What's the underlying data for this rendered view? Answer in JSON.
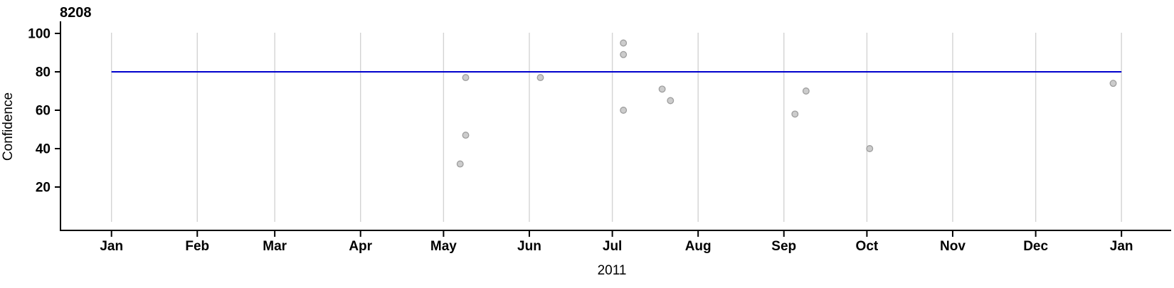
{
  "title": "8208",
  "chart_data": {
    "type": "scatter",
    "title": "8208",
    "xlabel": "2011",
    "ylabel": "Confidence",
    "legend": "none",
    "grid": "vertical-monthly-gridlines",
    "x_axis": {
      "kind": "date",
      "start": "2011-01-01",
      "end": "2012-01-01",
      "ticks": [
        {
          "date": "2011-01-01",
          "label": "Jan"
        },
        {
          "date": "2011-02-01",
          "label": "Feb"
        },
        {
          "date": "2011-03-01",
          "label": "Mar"
        },
        {
          "date": "2011-04-01",
          "label": "Apr"
        },
        {
          "date": "2011-05-01",
          "label": "May"
        },
        {
          "date": "2011-06-01",
          "label": "Jun"
        },
        {
          "date": "2011-07-01",
          "label": "Jul"
        },
        {
          "date": "2011-08-01",
          "label": "Aug"
        },
        {
          "date": "2011-09-01",
          "label": "Sep"
        },
        {
          "date": "2011-10-01",
          "label": "Oct"
        },
        {
          "date": "2011-11-01",
          "label": "Nov"
        },
        {
          "date": "2011-12-01",
          "label": "Dec"
        },
        {
          "date": "2012-01-01",
          "label": "Jan"
        }
      ]
    },
    "y_axis": {
      "ticks": [
        20,
        40,
        60,
        80,
        100
      ],
      "ylim": [
        0,
        105
      ]
    },
    "reference_line": {
      "value": 80
    },
    "points": [
      {
        "date": "2011-05-07",
        "confidence": 32
      },
      {
        "date": "2011-05-09",
        "confidence": 77
      },
      {
        "date": "2011-05-09",
        "confidence": 47
      },
      {
        "date": "2011-06-05",
        "confidence": 77
      },
      {
        "date": "2011-07-05",
        "confidence": 95
      },
      {
        "date": "2011-07-05",
        "confidence": 89
      },
      {
        "date": "2011-07-05",
        "confidence": 60
      },
      {
        "date": "2011-07-19",
        "confidence": 71
      },
      {
        "date": "2011-07-22",
        "confidence": 65
      },
      {
        "date": "2011-09-05",
        "confidence": 58
      },
      {
        "date": "2011-09-09",
        "confidence": 70
      },
      {
        "date": "2011-10-02",
        "confidence": 40
      },
      {
        "date": "2011-12-29",
        "confidence": 74
      }
    ],
    "colors": {
      "reference_line": "#0000cd",
      "point_fill": "#cccccc",
      "point_stroke": "#9e9e9e",
      "gridline": "#d3d3d3",
      "axis": "#000000"
    }
  }
}
